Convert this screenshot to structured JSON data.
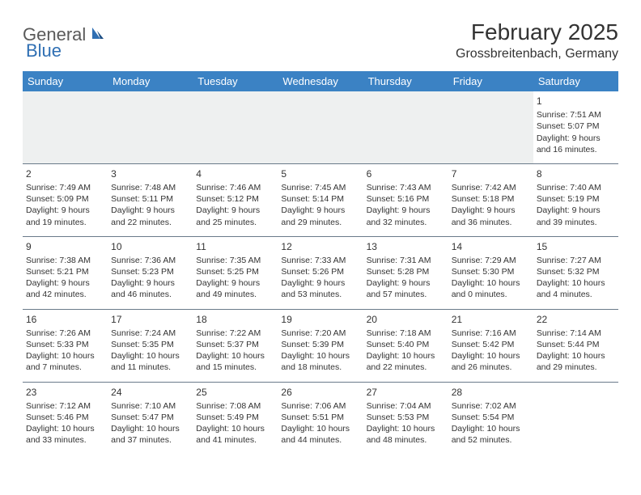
{
  "logo": {
    "text1": "General",
    "text2": "Blue"
  },
  "title": "February 2025",
  "location": "Grossbreitenbach, Germany",
  "headers": [
    "Sunday",
    "Monday",
    "Tuesday",
    "Wednesday",
    "Thursday",
    "Friday",
    "Saturday"
  ],
  "colors": {
    "header_bg": "#3b82c4",
    "header_fg": "#ffffff",
    "rule": "#6a7a8a",
    "logo_gray": "#5a5a5a",
    "logo_blue": "#2f6fb3"
  },
  "weeks": [
    [
      {
        "day": "",
        "sunrise": "",
        "sunset": "",
        "daylight": ""
      },
      {
        "day": "",
        "sunrise": "",
        "sunset": "",
        "daylight": ""
      },
      {
        "day": "",
        "sunrise": "",
        "sunset": "",
        "daylight": ""
      },
      {
        "day": "",
        "sunrise": "",
        "sunset": "",
        "daylight": ""
      },
      {
        "day": "",
        "sunrise": "",
        "sunset": "",
        "daylight": ""
      },
      {
        "day": "",
        "sunrise": "",
        "sunset": "",
        "daylight": ""
      },
      {
        "day": "1",
        "sunrise": "Sunrise: 7:51 AM",
        "sunset": "Sunset: 5:07 PM",
        "daylight": "Daylight: 9 hours and 16 minutes."
      }
    ],
    [
      {
        "day": "2",
        "sunrise": "Sunrise: 7:49 AM",
        "sunset": "Sunset: 5:09 PM",
        "daylight": "Daylight: 9 hours and 19 minutes."
      },
      {
        "day": "3",
        "sunrise": "Sunrise: 7:48 AM",
        "sunset": "Sunset: 5:11 PM",
        "daylight": "Daylight: 9 hours and 22 minutes."
      },
      {
        "day": "4",
        "sunrise": "Sunrise: 7:46 AM",
        "sunset": "Sunset: 5:12 PM",
        "daylight": "Daylight: 9 hours and 25 minutes."
      },
      {
        "day": "5",
        "sunrise": "Sunrise: 7:45 AM",
        "sunset": "Sunset: 5:14 PM",
        "daylight": "Daylight: 9 hours and 29 minutes."
      },
      {
        "day": "6",
        "sunrise": "Sunrise: 7:43 AM",
        "sunset": "Sunset: 5:16 PM",
        "daylight": "Daylight: 9 hours and 32 minutes."
      },
      {
        "day": "7",
        "sunrise": "Sunrise: 7:42 AM",
        "sunset": "Sunset: 5:18 PM",
        "daylight": "Daylight: 9 hours and 36 minutes."
      },
      {
        "day": "8",
        "sunrise": "Sunrise: 7:40 AM",
        "sunset": "Sunset: 5:19 PM",
        "daylight": "Daylight: 9 hours and 39 minutes."
      }
    ],
    [
      {
        "day": "9",
        "sunrise": "Sunrise: 7:38 AM",
        "sunset": "Sunset: 5:21 PM",
        "daylight": "Daylight: 9 hours and 42 minutes."
      },
      {
        "day": "10",
        "sunrise": "Sunrise: 7:36 AM",
        "sunset": "Sunset: 5:23 PM",
        "daylight": "Daylight: 9 hours and 46 minutes."
      },
      {
        "day": "11",
        "sunrise": "Sunrise: 7:35 AM",
        "sunset": "Sunset: 5:25 PM",
        "daylight": "Daylight: 9 hours and 49 minutes."
      },
      {
        "day": "12",
        "sunrise": "Sunrise: 7:33 AM",
        "sunset": "Sunset: 5:26 PM",
        "daylight": "Daylight: 9 hours and 53 minutes."
      },
      {
        "day": "13",
        "sunrise": "Sunrise: 7:31 AM",
        "sunset": "Sunset: 5:28 PM",
        "daylight": "Daylight: 9 hours and 57 minutes."
      },
      {
        "day": "14",
        "sunrise": "Sunrise: 7:29 AM",
        "sunset": "Sunset: 5:30 PM",
        "daylight": "Daylight: 10 hours and 0 minutes."
      },
      {
        "day": "15",
        "sunrise": "Sunrise: 7:27 AM",
        "sunset": "Sunset: 5:32 PM",
        "daylight": "Daylight: 10 hours and 4 minutes."
      }
    ],
    [
      {
        "day": "16",
        "sunrise": "Sunrise: 7:26 AM",
        "sunset": "Sunset: 5:33 PM",
        "daylight": "Daylight: 10 hours and 7 minutes."
      },
      {
        "day": "17",
        "sunrise": "Sunrise: 7:24 AM",
        "sunset": "Sunset: 5:35 PM",
        "daylight": "Daylight: 10 hours and 11 minutes."
      },
      {
        "day": "18",
        "sunrise": "Sunrise: 7:22 AM",
        "sunset": "Sunset: 5:37 PM",
        "daylight": "Daylight: 10 hours and 15 minutes."
      },
      {
        "day": "19",
        "sunrise": "Sunrise: 7:20 AM",
        "sunset": "Sunset: 5:39 PM",
        "daylight": "Daylight: 10 hours and 18 minutes."
      },
      {
        "day": "20",
        "sunrise": "Sunrise: 7:18 AM",
        "sunset": "Sunset: 5:40 PM",
        "daylight": "Daylight: 10 hours and 22 minutes."
      },
      {
        "day": "21",
        "sunrise": "Sunrise: 7:16 AM",
        "sunset": "Sunset: 5:42 PM",
        "daylight": "Daylight: 10 hours and 26 minutes."
      },
      {
        "day": "22",
        "sunrise": "Sunrise: 7:14 AM",
        "sunset": "Sunset: 5:44 PM",
        "daylight": "Daylight: 10 hours and 29 minutes."
      }
    ],
    [
      {
        "day": "23",
        "sunrise": "Sunrise: 7:12 AM",
        "sunset": "Sunset: 5:46 PM",
        "daylight": "Daylight: 10 hours and 33 minutes."
      },
      {
        "day": "24",
        "sunrise": "Sunrise: 7:10 AM",
        "sunset": "Sunset: 5:47 PM",
        "daylight": "Daylight: 10 hours and 37 minutes."
      },
      {
        "day": "25",
        "sunrise": "Sunrise: 7:08 AM",
        "sunset": "Sunset: 5:49 PM",
        "daylight": "Daylight: 10 hours and 41 minutes."
      },
      {
        "day": "26",
        "sunrise": "Sunrise: 7:06 AM",
        "sunset": "Sunset: 5:51 PM",
        "daylight": "Daylight: 10 hours and 44 minutes."
      },
      {
        "day": "27",
        "sunrise": "Sunrise: 7:04 AM",
        "sunset": "Sunset: 5:53 PM",
        "daylight": "Daylight: 10 hours and 48 minutes."
      },
      {
        "day": "28",
        "sunrise": "Sunrise: 7:02 AM",
        "sunset": "Sunset: 5:54 PM",
        "daylight": "Daylight: 10 hours and 52 minutes."
      },
      {
        "day": "",
        "sunrise": "",
        "sunset": "",
        "daylight": ""
      }
    ]
  ]
}
